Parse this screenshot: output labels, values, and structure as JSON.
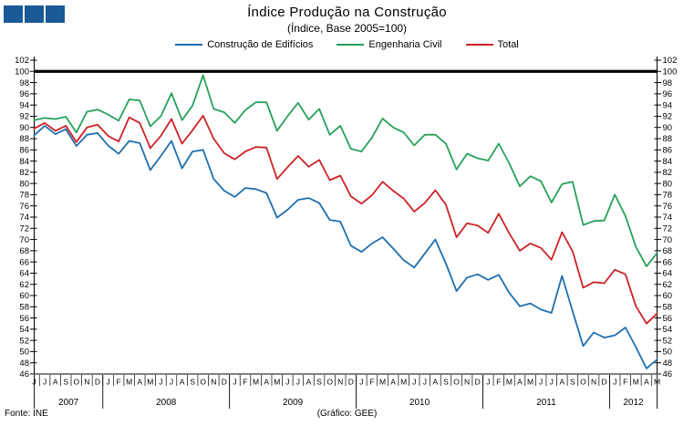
{
  "logo": {
    "color": "#1A5A96",
    "square_count": 3
  },
  "header": {
    "title": "Índice Produção na Construção",
    "subtitle": "(Índice, Base 2005=100)"
  },
  "footer": {
    "source": "Fonte: INE",
    "credit": "(Gráfico: GEE)"
  },
  "chart_data": {
    "type": "line",
    "title": "Índice Produção na Construção",
    "subtitle": "(Índice, Base 2005=100)",
    "grid": false,
    "legend_position": "top",
    "axis_labels_both_sides": true,
    "ylim": [
      46,
      102
    ],
    "ytick_step": 2,
    "reference_line": {
      "value": 100,
      "color": "#000000"
    },
    "x_months": [
      "J",
      "J",
      "A",
      "S",
      "O",
      "N",
      "D",
      "J",
      "F",
      "M",
      "A",
      "M",
      "J",
      "J",
      "A",
      "S",
      "O",
      "N",
      "D",
      "J",
      "F",
      "M",
      "A",
      "M",
      "J",
      "J",
      "A",
      "S",
      "O",
      "N",
      "D",
      "J",
      "F",
      "M",
      "A",
      "M",
      "J",
      "J",
      "A",
      "S",
      "O",
      "N",
      "D",
      "J",
      "F",
      "M",
      "A",
      "M",
      "J",
      "J",
      "A",
      "S",
      "O",
      "N",
      "D",
      "J",
      "F",
      "M",
      "A",
      "M"
    ],
    "x_years": [
      {
        "label": "2007",
        "start": 0,
        "count": 7
      },
      {
        "label": "2008",
        "start": 7,
        "count": 12
      },
      {
        "label": "2009",
        "start": 19,
        "count": 12
      },
      {
        "label": "2010",
        "start": 31,
        "count": 12
      },
      {
        "label": "2011",
        "start": 43,
        "count": 12
      },
      {
        "label": "2012",
        "start": 55,
        "count": 5
      }
    ],
    "series": [
      {
        "name": "Construção de Edifícios",
        "color": "#1E6FAE",
        "values": [
          88.6,
          90.3,
          88.8,
          89.7,
          86.7,
          88.7,
          89.0,
          86.8,
          85.3,
          87.6,
          87.2,
          82.4,
          84.9,
          87.6,
          82.7,
          85.7,
          86.0,
          80.8,
          78.7,
          77.6,
          79.2,
          79.0,
          78.3,
          73.9,
          75.3,
          77.1,
          77.4,
          76.5,
          73.5,
          73.2,
          68.9,
          67.8,
          69.3,
          70.4,
          68.4,
          66.3,
          65.0,
          67.5,
          70.0,
          65.7,
          60.8,
          63.2,
          63.8,
          62.8,
          63.7,
          60.5,
          58.1,
          58.6,
          57.5,
          56.9,
          63.5,
          57.2,
          51.0,
          53.4,
          52.5,
          52.9,
          54.3,
          50.8,
          47.0,
          48.6
        ]
      },
      {
        "name": "Engenharia Civil",
        "color": "#27A15B",
        "values": [
          91.3,
          91.7,
          91.5,
          91.9,
          89.1,
          92.8,
          93.2,
          92.3,
          91.2,
          95.0,
          94.8,
          90.2,
          92.0,
          96.1,
          91.3,
          93.9,
          99.3,
          93.3,
          92.7,
          90.8,
          93.1,
          94.5,
          94.5,
          89.4,
          92.0,
          94.4,
          91.4,
          93.3,
          88.7,
          90.3,
          86.2,
          85.7,
          88.2,
          91.6,
          90.0,
          89.1,
          86.8,
          88.7,
          88.7,
          87.1,
          82.5,
          85.3,
          84.5,
          84.1,
          87.1,
          83.6,
          79.5,
          81.3,
          80.4,
          76.6,
          79.9,
          80.3,
          72.6,
          73.3,
          73.4,
          78.0,
          74.2,
          68.7,
          65.2,
          67.6
        ]
      },
      {
        "name": "Total",
        "color": "#CE2227",
        "values": [
          89.8,
          90.8,
          89.4,
          90.3,
          87.4,
          90.0,
          90.5,
          88.5,
          87.5,
          91.8,
          90.8,
          86.3,
          88.5,
          91.5,
          87.1,
          89.5,
          92.1,
          88.0,
          85.4,
          84.3,
          85.7,
          86.5,
          86.4,
          80.8,
          82.9,
          84.9,
          83.0,
          84.2,
          80.6,
          81.4,
          77.7,
          76.4,
          77.9,
          80.3,
          78.7,
          77.3,
          75.0,
          76.5,
          78.8,
          76.2,
          70.4,
          72.9,
          72.5,
          71.2,
          74.6,
          71.1,
          68.0,
          69.3,
          68.5,
          66.4,
          71.3,
          67.9,
          61.4,
          62.4,
          62.2,
          64.6,
          63.8,
          58.1,
          55.0,
          56.8
        ]
      }
    ]
  }
}
